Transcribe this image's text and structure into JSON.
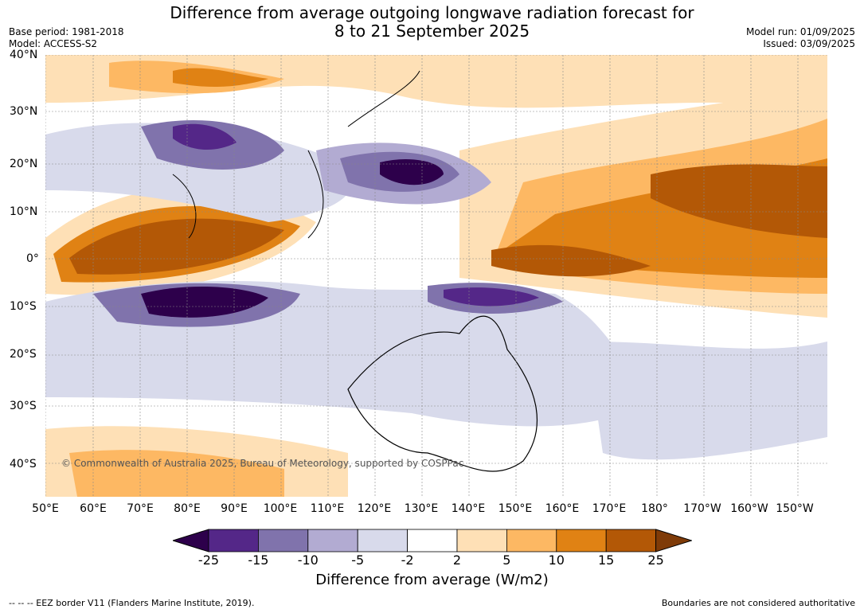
{
  "header": {
    "title_line1": "Difference from average outgoing longwave radiation forecast for",
    "title_line2": "8 to 21 September 2025",
    "base_period": "Base period: 1981-2018",
    "model": "Model: ACCESS-S2",
    "model_run": "Model run: 01/09/2025",
    "issued": "Issued: 03/09/2025"
  },
  "map": {
    "copyright": "© Commonwealth of Australia 2025, Bureau of Meteorology, supported by COSPPac",
    "lat_labels": [
      "40°N",
      "30°N",
      "20°N",
      "10°N",
      "0°",
      "10°S",
      "20°S",
      "30°S",
      "40°S"
    ],
    "lon_labels": [
      "50°E",
      "60°E",
      "70°E",
      "80°E",
      "90°E",
      "100°E",
      "110°E",
      "120°E",
      "130°E",
      "140°E",
      "150°E",
      "160°E",
      "170°E",
      "180°",
      "170°W",
      "160°W",
      "150°W"
    ]
  },
  "colorbar": {
    "label": "Difference from average (W/m2)",
    "ticks": [
      "-25",
      "-15",
      "-10",
      "-5",
      "-2",
      "2",
      "5",
      "10",
      "15",
      "25"
    ],
    "colors": [
      "#2d004b",
      "#542788",
      "#8073ac",
      "#b2abd2",
      "#d8daeb",
      "#ffffff",
      "#fee0b6",
      "#fdb863",
      "#e08214",
      "#b35806",
      "#7f3b08"
    ]
  },
  "footer": {
    "eez_note": "--  --  -- EEZ border V11 (Flanders Marine Institute, 2019).",
    "boundaries_note": "Boundaries are not considered authoritative"
  }
}
